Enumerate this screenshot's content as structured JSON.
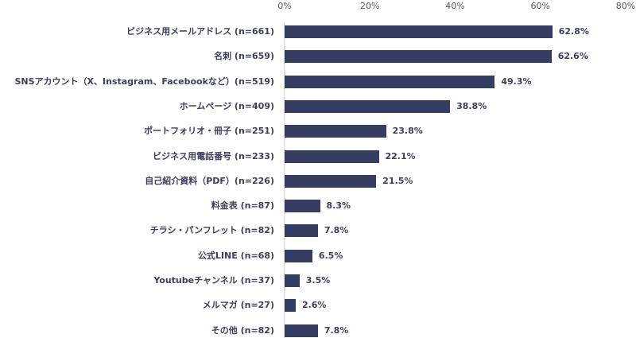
{
  "chart_data": {
    "type": "bar",
    "orientation": "horizontal",
    "title": "",
    "xlabel": "",
    "ylabel": "",
    "xlim": [
      0,
      80
    ],
    "x_ticks": [
      "0%",
      "20%",
      "40%",
      "60%",
      "80%"
    ],
    "grid": false,
    "legend": null,
    "bar_color": "#363d62",
    "categories": [
      "ビジネス用メールアドレス (n=661)",
      "名刺 (n=659)",
      "SNSアカウント（X、Instagram、Facebookなど）(n=519)",
      "ホームページ (n=409)",
      "ポートフォリオ・冊子 (n=251)",
      "ビジネス用電話番号 (n=233)",
      "自己紹介資料（PDF）(n=226)",
      "料金表 (n=87)",
      "チラシ・パンフレット (n=82)",
      "公式LINE (n=68)",
      "Youtubeチャンネル (n=37)",
      "メルマガ (n=27)",
      "その他 (n=82)"
    ],
    "values": [
      62.8,
      62.6,
      49.3,
      38.8,
      23.8,
      22.1,
      21.5,
      8.3,
      7.8,
      6.5,
      3.5,
      2.6,
      7.8
    ],
    "value_labels": [
      "62.8%",
      "62.6%",
      "49.3%",
      "38.8%",
      "23.8%",
      "22.1%",
      "21.5%",
      "8.3%",
      "7.8%",
      "6.5%",
      "3.5%",
      "2.6%",
      "7.8%"
    ]
  }
}
